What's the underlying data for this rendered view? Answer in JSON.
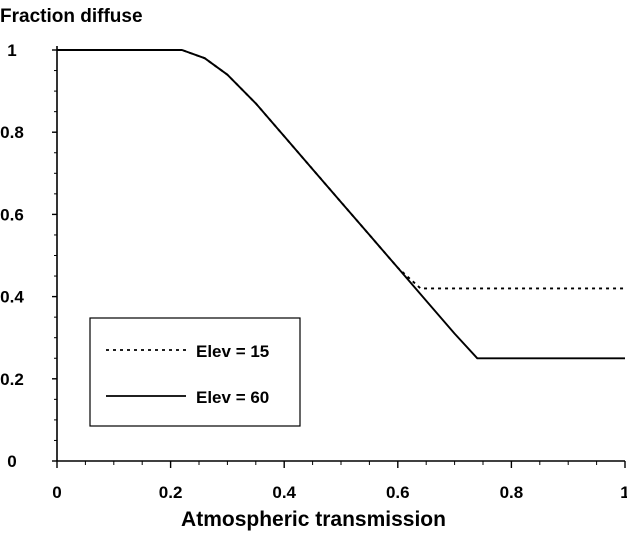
{
  "chart_data": {
    "type": "line",
    "title": "",
    "ylabel": "Fraction diffuse",
    "xlabel": "Atmospheric transmission",
    "xlim": [
      0,
      1
    ],
    "ylim": [
      0,
      1
    ],
    "x_ticks": [
      "0",
      "0.2",
      "0.4",
      "0.6",
      "0.8",
      "1"
    ],
    "y_ticks": [
      "0",
      "0.2",
      "0.4",
      "0.6",
      "0.8",
      "1"
    ],
    "grid": false,
    "legend_position": "bottom-left",
    "series": [
      {
        "name": "Elev = 15",
        "style": "dotted",
        "color": "#000000",
        "x": [
          0,
          0.22,
          0.26,
          0.3,
          0.35,
          0.4,
          0.45,
          0.5,
          0.55,
          0.6,
          0.64,
          1.0
        ],
        "y": [
          1.0,
          1.0,
          0.98,
          0.94,
          0.87,
          0.79,
          0.71,
          0.63,
          0.55,
          0.47,
          0.42,
          0.42
        ]
      },
      {
        "name": "Elev = 60",
        "style": "solid",
        "color": "#000000",
        "x": [
          0,
          0.22,
          0.26,
          0.3,
          0.35,
          0.4,
          0.45,
          0.5,
          0.55,
          0.6,
          0.65,
          0.7,
          0.74,
          1.0
        ],
        "y": [
          1.0,
          1.0,
          0.98,
          0.94,
          0.87,
          0.79,
          0.71,
          0.63,
          0.55,
          0.47,
          0.39,
          0.31,
          0.25,
          0.25
        ]
      }
    ]
  }
}
